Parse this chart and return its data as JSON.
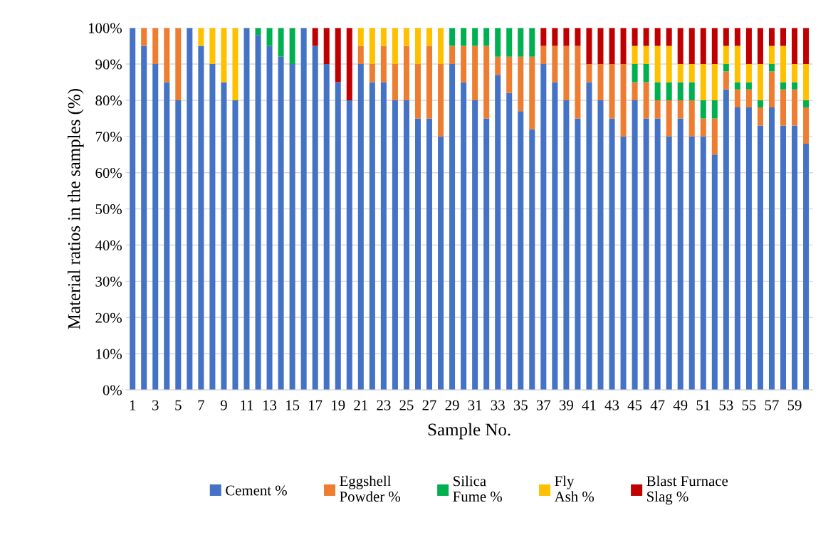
{
  "chart_data": {
    "type": "bar",
    "stacked": true,
    "xlabel": "Sample No.",
    "ylabel": "Material ratios in the samples (%)",
    "categories": [
      "1",
      null,
      "3",
      null,
      "5",
      null,
      "7",
      null,
      "9",
      null,
      "11",
      null,
      "13",
      null,
      "15",
      null,
      "17",
      null,
      "19",
      null,
      "21",
      null,
      "23",
      null,
      "25",
      null,
      "27",
      null,
      "29",
      null,
      "31",
      null,
      "33",
      null,
      "35",
      null,
      "37",
      null,
      "39",
      null,
      "41",
      null,
      "43",
      null,
      "45",
      null,
      "47",
      null,
      "49",
      null,
      "51",
      null,
      "53",
      null,
      "55",
      null,
      "57",
      null,
      "59",
      null
    ],
    "series": [
      {
        "name": "Cement %",
        "color": "#4472c4",
        "values": [
          100,
          95,
          90,
          85,
          80,
          100,
          95,
          90,
          85,
          80,
          100,
          98,
          95,
          92,
          90,
          100,
          95,
          90,
          85,
          80,
          90,
          85,
          85,
          80,
          80,
          75,
          75,
          70,
          90,
          85,
          80,
          75,
          87,
          82,
          77,
          72,
          90,
          85,
          80,
          75,
          85,
          80,
          75,
          70,
          80,
          75,
          75,
          70,
          75,
          70,
          70,
          65,
          83,
          78,
          78,
          73,
          78,
          73,
          73,
          68
        ]
      },
      {
        "name": "Eggshell\nPowder %",
        "color": "#ed7d31",
        "values": [
          0,
          5,
          10,
          15,
          20,
          0,
          0,
          0,
          0,
          0,
          0,
          0,
          0,
          0,
          0,
          0,
          0,
          0,
          0,
          0,
          5,
          5,
          10,
          10,
          15,
          15,
          20,
          20,
          5,
          10,
          15,
          20,
          5,
          10,
          15,
          20,
          5,
          10,
          15,
          20,
          5,
          10,
          15,
          20,
          5,
          10,
          5,
          10,
          5,
          10,
          5,
          10,
          5,
          5,
          5,
          5,
          10,
          10,
          10,
          10
        ]
      },
      {
        "name": "Silica\nFume %",
        "color": "#00b050",
        "values": [
          0,
          0,
          0,
          0,
          0,
          0,
          0,
          0,
          0,
          0,
          0,
          2,
          5,
          8,
          10,
          0,
          0,
          0,
          0,
          0,
          0,
          0,
          0,
          0,
          0,
          0,
          0,
          0,
          5,
          5,
          5,
          5,
          8,
          8,
          8,
          8,
          0,
          0,
          0,
          0,
          0,
          0,
          0,
          0,
          5,
          5,
          5,
          5,
          5,
          5,
          5,
          5,
          2,
          2,
          2,
          2,
          2,
          2,
          2,
          2
        ]
      },
      {
        "name": "Fly\nAsh %",
        "color": "#ffc000",
        "values": [
          0,
          0,
          0,
          0,
          0,
          0,
          5,
          10,
          15,
          20,
          0,
          0,
          0,
          0,
          0,
          0,
          0,
          0,
          0,
          0,
          5,
          10,
          5,
          10,
          5,
          10,
          5,
          10,
          0,
          0,
          0,
          0,
          0,
          0,
          0,
          0,
          0,
          0,
          0,
          0,
          0,
          0,
          0,
          0,
          5,
          5,
          10,
          10,
          5,
          5,
          10,
          10,
          5,
          10,
          5,
          10,
          5,
          10,
          5,
          10
        ]
      },
      {
        "name": "Blast Furnace\nSlag %",
        "color": "#c00000",
        "values": [
          0,
          0,
          0,
          0,
          0,
          0,
          0,
          0,
          0,
          0,
          0,
          0,
          0,
          0,
          0,
          0,
          5,
          10,
          15,
          20,
          0,
          0,
          0,
          0,
          0,
          0,
          0,
          0,
          0,
          0,
          0,
          0,
          0,
          0,
          0,
          0,
          5,
          5,
          5,
          5,
          10,
          10,
          10,
          10,
          5,
          5,
          5,
          5,
          10,
          10,
          10,
          10,
          5,
          5,
          10,
          10,
          5,
          5,
          10,
          10
        ]
      }
    ],
    "ylim": [
      0,
      100
    ],
    "yticks": [
      {
        "value": 0,
        "label": "0%"
      },
      {
        "value": 10,
        "label": "10%"
      },
      {
        "value": 20,
        "label": "20%"
      },
      {
        "value": 30,
        "label": "30%"
      },
      {
        "value": 40,
        "label": "40%"
      },
      {
        "value": 50,
        "label": "50%"
      },
      {
        "value": 60,
        "label": "60%"
      },
      {
        "value": 70,
        "label": "70%"
      },
      {
        "value": 80,
        "label": "80%"
      },
      {
        "value": 90,
        "label": "90%"
      },
      {
        "value": 100,
        "label": "100%"
      }
    ],
    "grid": "y",
    "legend": "bottom"
  }
}
